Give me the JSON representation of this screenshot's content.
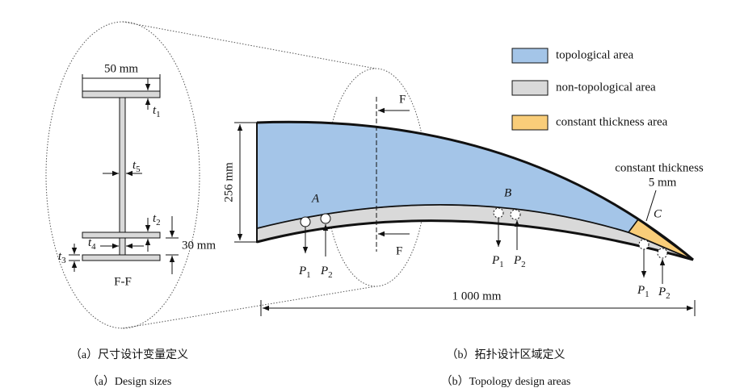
{
  "section": {
    "width": "50 mm",
    "height": "30 mm",
    "label": "F-F",
    "t1": {
      "symbol": "t",
      "subscript": "1"
    },
    "t2": {
      "symbol": "t",
      "subscript": "2"
    },
    "t3": {
      "symbol": "t",
      "subscript": "3"
    },
    "t4": {
      "symbol": "t",
      "subscript": "4"
    },
    "t5": {
      "symbol": "t",
      "subscript": "5"
    }
  },
  "beam": {
    "height": "256 mm",
    "length": "1 000 mm",
    "cut_labels": [
      "F",
      "F"
    ],
    "points": [
      "A",
      "B",
      "C"
    ],
    "loads": [
      {
        "p1": {
          "symbol": "P",
          "subscript": "1"
        },
        "p2": {
          "symbol": "P",
          "subscript": "2"
        }
      },
      {
        "p1": {
          "symbol": "P",
          "subscript": "1"
        },
        "p2": {
          "symbol": "P",
          "subscript": "2"
        }
      },
      {
        "p1": {
          "symbol": "P",
          "subscript": "1"
        },
        "p2": {
          "symbol": "P",
          "subscript": "2"
        }
      }
    ],
    "constant_thickness": {
      "label": "constant thickness",
      "value": "5 mm"
    }
  },
  "legend": {
    "items": [
      {
        "label": "topological area"
      },
      {
        "label": "non-topological area"
      },
      {
        "label": "constant thickness area"
      }
    ]
  },
  "captions": {
    "a": {
      "zh": "（a）尺寸设计变量定义",
      "en": "（a）Design sizes"
    },
    "b": {
      "zh": "（b）拓扑设计区域定义",
      "en": "（b）Topology design areas"
    }
  }
}
